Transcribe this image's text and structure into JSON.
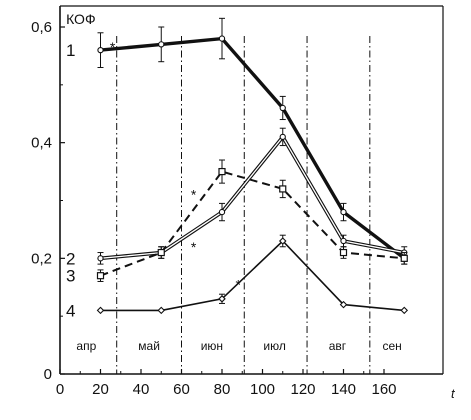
{
  "chart_data": {
    "type": "line",
    "ylabel": "КОФ",
    "xlabel": "t",
    "xlim": [
      0,
      175
    ],
    "ylim": [
      0,
      0.6
    ],
    "x_ticks": [
      0,
      20,
      40,
      60,
      80,
      100,
      120,
      140,
      160
    ],
    "x_tick_labels": [
      "0",
      "20",
      "40",
      "60",
      "80",
      "100",
      "120",
      "140",
      "160"
    ],
    "y_ticks": [
      0,
      0.2,
      0.4,
      0.6
    ],
    "y_tick_labels": [
      "0",
      "0,2",
      "0,4",
      "0,6"
    ],
    "grid": false,
    "period_boundaries": [
      28,
      60,
      91,
      122,
      153
    ],
    "periods": [
      {
        "label": "апр",
        "x": 13
      },
      {
        "label": "май",
        "x": 44
      },
      {
        "label": "июн",
        "x": 75
      },
      {
        "label": "июл",
        "x": 106
      },
      {
        "label": "авг",
        "x": 137
      },
      {
        "label": "сен",
        "x": 164
      }
    ],
    "series": [
      {
        "name": "1",
        "style": "bold-solid",
        "marker": "circle",
        "x": [
          20,
          50,
          80,
          110,
          140,
          170
        ],
        "y": [
          0.56,
          0.57,
          0.58,
          0.46,
          0.28,
          0.2
        ],
        "err": [
          0.03,
          0.03,
          0.035,
          0.02,
          0.015,
          0.01
        ]
      },
      {
        "name": "2",
        "style": "double-line",
        "marker": "circle",
        "x": [
          20,
          50,
          80,
          110,
          140,
          170
        ],
        "y": [
          0.2,
          0.21,
          0.28,
          0.41,
          0.23,
          0.21
        ],
        "err": [
          0.01,
          0.01,
          0.015,
          0.015,
          0.01,
          0.01
        ]
      },
      {
        "name": "3",
        "style": "dashed",
        "marker": "square",
        "x": [
          20,
          50,
          80,
          110,
          140,
          170
        ],
        "y": [
          0.17,
          0.21,
          0.35,
          0.32,
          0.21,
          0.2
        ],
        "err": [
          0.01,
          0.01,
          0.02,
          0.015,
          0.01,
          0.01
        ]
      },
      {
        "name": "4",
        "style": "thin-solid",
        "marker": "diamond",
        "x": [
          20,
          50,
          80,
          110,
          140,
          170
        ],
        "y": [
          0.11,
          0.11,
          0.13,
          0.23,
          0.12,
          0.11
        ],
        "err": [
          0.0,
          0.0,
          0.008,
          0.01,
          0.0,
          0.0
        ]
      }
    ],
    "annotations": [
      {
        "text": "*",
        "x": 26,
        "y": 0.565
      },
      {
        "text": "*",
        "x": 66,
        "y": 0.31
      },
      {
        "text": "*",
        "x": 66,
        "y": 0.22
      },
      {
        "text": "*",
        "x": 88,
        "y": 0.155
      }
    ]
  }
}
